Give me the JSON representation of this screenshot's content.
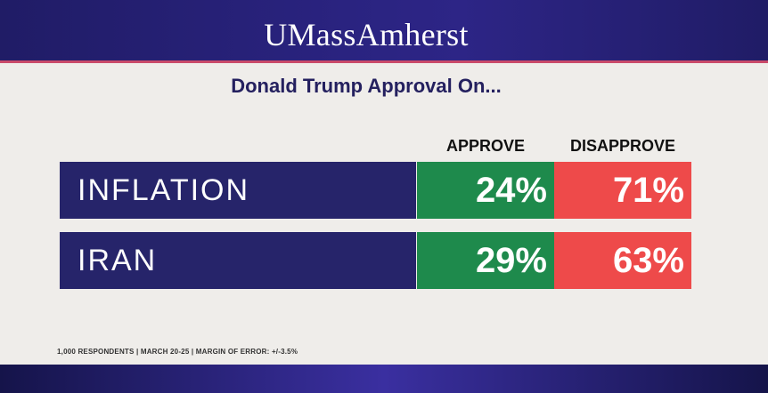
{
  "header": {
    "brand": "UMassAmherst"
  },
  "chart_data": {
    "type": "table",
    "title": "Donald Trump Approval On...",
    "columns": [
      "APPROVE",
      "DISAPPROVE"
    ],
    "rows": [
      {
        "label": "INFLATION",
        "approve": "24%",
        "disapprove": "71%"
      },
      {
        "label": "IRAN",
        "approve": "29%",
        "disapprove": "63%"
      }
    ],
    "series": [
      {
        "name": "APPROVE",
        "values": [
          24,
          29
        ]
      },
      {
        "name": "DISAPPROVE",
        "values": [
          71,
          63
        ]
      }
    ],
    "categories": [
      "INFLATION",
      "IRAN"
    ]
  },
  "footnote": "1,000 RESPONDENTS | MARCH 20-25 | MARGIN OF ERROR: +/-3.5%",
  "colors": {
    "label_bg": "#26246a",
    "approve": "#1e8a4c",
    "disapprove": "#ee4a4a",
    "panel": "#efedea"
  }
}
